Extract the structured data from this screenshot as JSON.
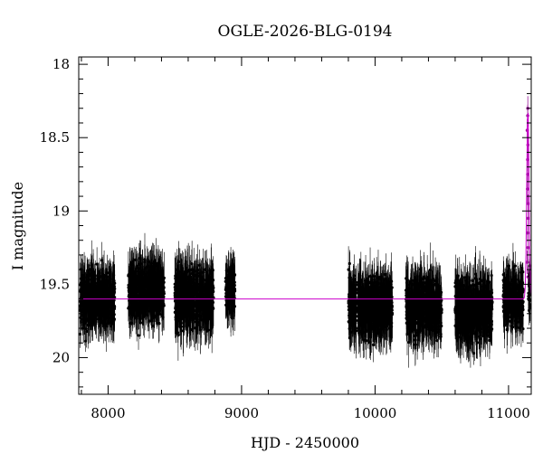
{
  "chart_data": {
    "type": "scatter",
    "title": "OGLE-2026-BLG-0194",
    "xlabel": "HJD - 2450000",
    "ylabel": "I magnitude",
    "xlim": [
      7780,
      11170
    ],
    "ylim": [
      20.25,
      17.95
    ],
    "y_inverted": true,
    "x_ticks": [
      8000,
      9000,
      10000,
      11000
    ],
    "y_ticks": [
      18,
      18.5,
      19,
      19.5,
      20
    ],
    "x_tick_labels": [
      "8000",
      "9000",
      "10000",
      "11000"
    ],
    "y_tick_labels": [
      "18",
      "18.5",
      "19",
      "19.5",
      "20"
    ],
    "baseline_mag": 19.6,
    "grid": false,
    "colors": {
      "data": "#000000",
      "event": "#9b1a9b",
      "model": "#cc00cc"
    },
    "seasons": [
      {
        "start": 7790,
        "end": 8050,
        "mean_mag": 19.6,
        "scatter": 0.12,
        "err": 0.1
      },
      {
        "start": 8150,
        "end": 8420,
        "mean_mag": 19.55,
        "scatter": 0.12,
        "err": 0.1
      },
      {
        "start": 8500,
        "end": 8790,
        "mean_mag": 19.6,
        "scatter": 0.13,
        "err": 0.11
      },
      {
        "start": 8880,
        "end": 8950,
        "mean_mag": 19.55,
        "scatter": 0.1,
        "err": 0.1
      },
      {
        "start": 9800,
        "end": 9860,
        "mean_mag": 19.65,
        "scatter": 0.13,
        "err": 0.11
      },
      {
        "start": 9870,
        "end": 10130,
        "mean_mag": 19.65,
        "scatter": 0.13,
        "err": 0.11
      },
      {
        "start": 10230,
        "end": 10500,
        "mean_mag": 19.65,
        "scatter": 0.13,
        "err": 0.11
      },
      {
        "start": 10600,
        "end": 10880,
        "mean_mag": 19.68,
        "scatter": 0.13,
        "err": 0.11
      },
      {
        "start": 10960,
        "end": 11110,
        "mean_mag": 19.6,
        "scatter": 0.12,
        "err": 0.1
      }
    ],
    "event": {
      "t0": 11145,
      "width_days": 12,
      "peak_mag": 18.28,
      "points_mag": [
        18.3,
        18.35,
        18.45,
        18.55,
        18.65,
        18.75,
        18.85,
        18.95,
        19.05,
        19.15,
        19.25,
        19.35,
        19.45
      ]
    }
  }
}
